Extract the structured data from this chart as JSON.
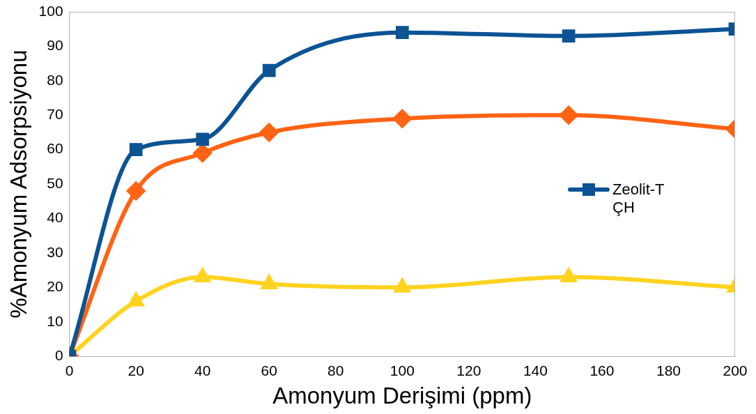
{
  "chart_data": {
    "type": "line",
    "xlabel": "Amonyum Derişimi (ppm)",
    "ylabel": "%Amonyum Adsorpsiyonu",
    "x": [
      0,
      20,
      40,
      60,
      100,
      150,
      200
    ],
    "xlim": [
      0,
      200
    ],
    "xticks": [
      0,
      20,
      40,
      60,
      80,
      100,
      120,
      140,
      160,
      180,
      200
    ],
    "ylim": [
      0,
      100
    ],
    "yticks": [
      0,
      10,
      20,
      30,
      40,
      50,
      60,
      70,
      80,
      90,
      100
    ],
    "grid": false,
    "legend": "right",
    "series": [
      {
        "name": "Zeolit-TÇH",
        "color": "#0b5394",
        "marker": "square",
        "values": [
          0,
          60,
          63,
          83,
          94,
          93,
          95
        ]
      },
      {
        "color": "#ff6314",
        "marker": "diamond",
        "values": [
          0,
          48,
          59,
          65,
          69,
          70,
          66
        ]
      },
      {
        "color": "#ffd320",
        "marker": "triangle",
        "values": [
          0,
          16,
          23,
          21,
          20,
          23,
          20
        ]
      }
    ]
  }
}
